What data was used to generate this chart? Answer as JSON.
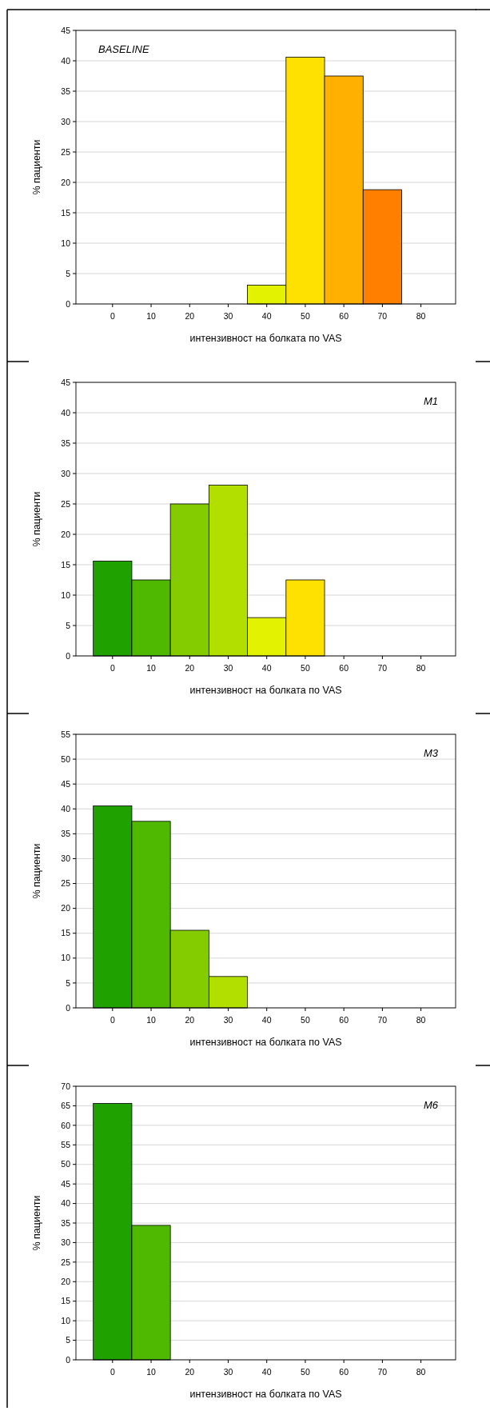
{
  "chart_data": [
    {
      "type": "histogram",
      "title": "BASELINE",
      "xlabel": "интензивност на болката по VAS",
      "ylabel": "% пациенти",
      "bins": [
        -5,
        5,
        15,
        25,
        35,
        45,
        55,
        65,
        75,
        85
      ],
      "values": [
        0,
        0,
        0,
        0,
        3.1,
        40.6,
        37.5,
        18.8,
        0
      ],
      "colors": [
        "#1fa200",
        "#4fb800",
        "#84cc00",
        "#b2de00",
        "#e3f200",
        "#ffe100",
        "#ffb000",
        "#ff8000",
        "#ff8000"
      ],
      "xlim": [
        -9.5,
        89
      ],
      "xticks": [
        0,
        10,
        20,
        30,
        40,
        50,
        60,
        70,
        80
      ],
      "ylim": [
        0,
        45
      ],
      "yticks": [
        0,
        5,
        10,
        15,
        20,
        25,
        30,
        35,
        40,
        45
      ],
      "grid": "y"
    },
    {
      "type": "histogram",
      "title": "M1",
      "xlabel": "интензивност на болката по VAS",
      "ylabel": "% пациенти",
      "bins": [
        -5,
        5,
        15,
        25,
        35,
        45,
        55,
        65,
        75,
        85
      ],
      "values": [
        15.6,
        12.5,
        25,
        28.1,
        6.3,
        12.5,
        0,
        0,
        0
      ],
      "colors": [
        "#1fa200",
        "#4fb800",
        "#84cc00",
        "#b2de00",
        "#e3f200",
        "#ffe100",
        "#ffb000",
        "#ff8000",
        "#ff8000"
      ],
      "xlim": [
        -9.5,
        89
      ],
      "xticks": [
        0,
        10,
        20,
        30,
        40,
        50,
        60,
        70,
        80
      ],
      "ylim": [
        0,
        45
      ],
      "yticks": [
        0,
        5,
        10,
        15,
        20,
        25,
        30,
        35,
        40,
        45
      ],
      "grid": "y"
    },
    {
      "type": "histogram",
      "title": "M3",
      "xlabel": "интензивност на болката по VAS",
      "ylabel": "% пациенти",
      "bins": [
        -5,
        5,
        15,
        25,
        35,
        45,
        55,
        65,
        75,
        85
      ],
      "values": [
        40.6,
        37.5,
        15.6,
        6.3,
        0,
        0,
        0,
        0,
        0
      ],
      "colors": [
        "#1fa200",
        "#4fb800",
        "#84cc00",
        "#b2de00",
        "#e3f200",
        "#ffe100",
        "#ffb000",
        "#ff8000",
        "#ff8000"
      ],
      "xlim": [
        -9.5,
        89
      ],
      "xticks": [
        0,
        10,
        20,
        30,
        40,
        50,
        60,
        70,
        80
      ],
      "ylim": [
        0,
        55
      ],
      "yticks": [
        0,
        5,
        10,
        15,
        20,
        25,
        30,
        35,
        40,
        45,
        50,
        55
      ],
      "grid": "y"
    },
    {
      "type": "histogram",
      "title": "M6",
      "xlabel": "интензивност на болката по VAS",
      "ylabel": "% пациенти",
      "bins": [
        -5,
        5,
        15,
        25,
        35,
        45,
        55,
        65,
        75,
        85
      ],
      "values": [
        65.6,
        34.4,
        0,
        0,
        0,
        0,
        0,
        0,
        0
      ],
      "colors": [
        "#1fa200",
        "#4fb800",
        "#84cc00",
        "#b2de00",
        "#e3f200",
        "#ffe100",
        "#ffb000",
        "#ff8000",
        "#ff8000"
      ],
      "xlim": [
        -9.5,
        89
      ],
      "xticks": [
        0,
        10,
        20,
        30,
        40,
        50,
        60,
        70,
        80
      ],
      "ylim": [
        0,
        70
      ],
      "yticks": [
        0,
        5,
        10,
        15,
        20,
        25,
        30,
        35,
        40,
        45,
        50,
        55,
        60,
        65,
        70
      ],
      "grid": "y"
    }
  ]
}
